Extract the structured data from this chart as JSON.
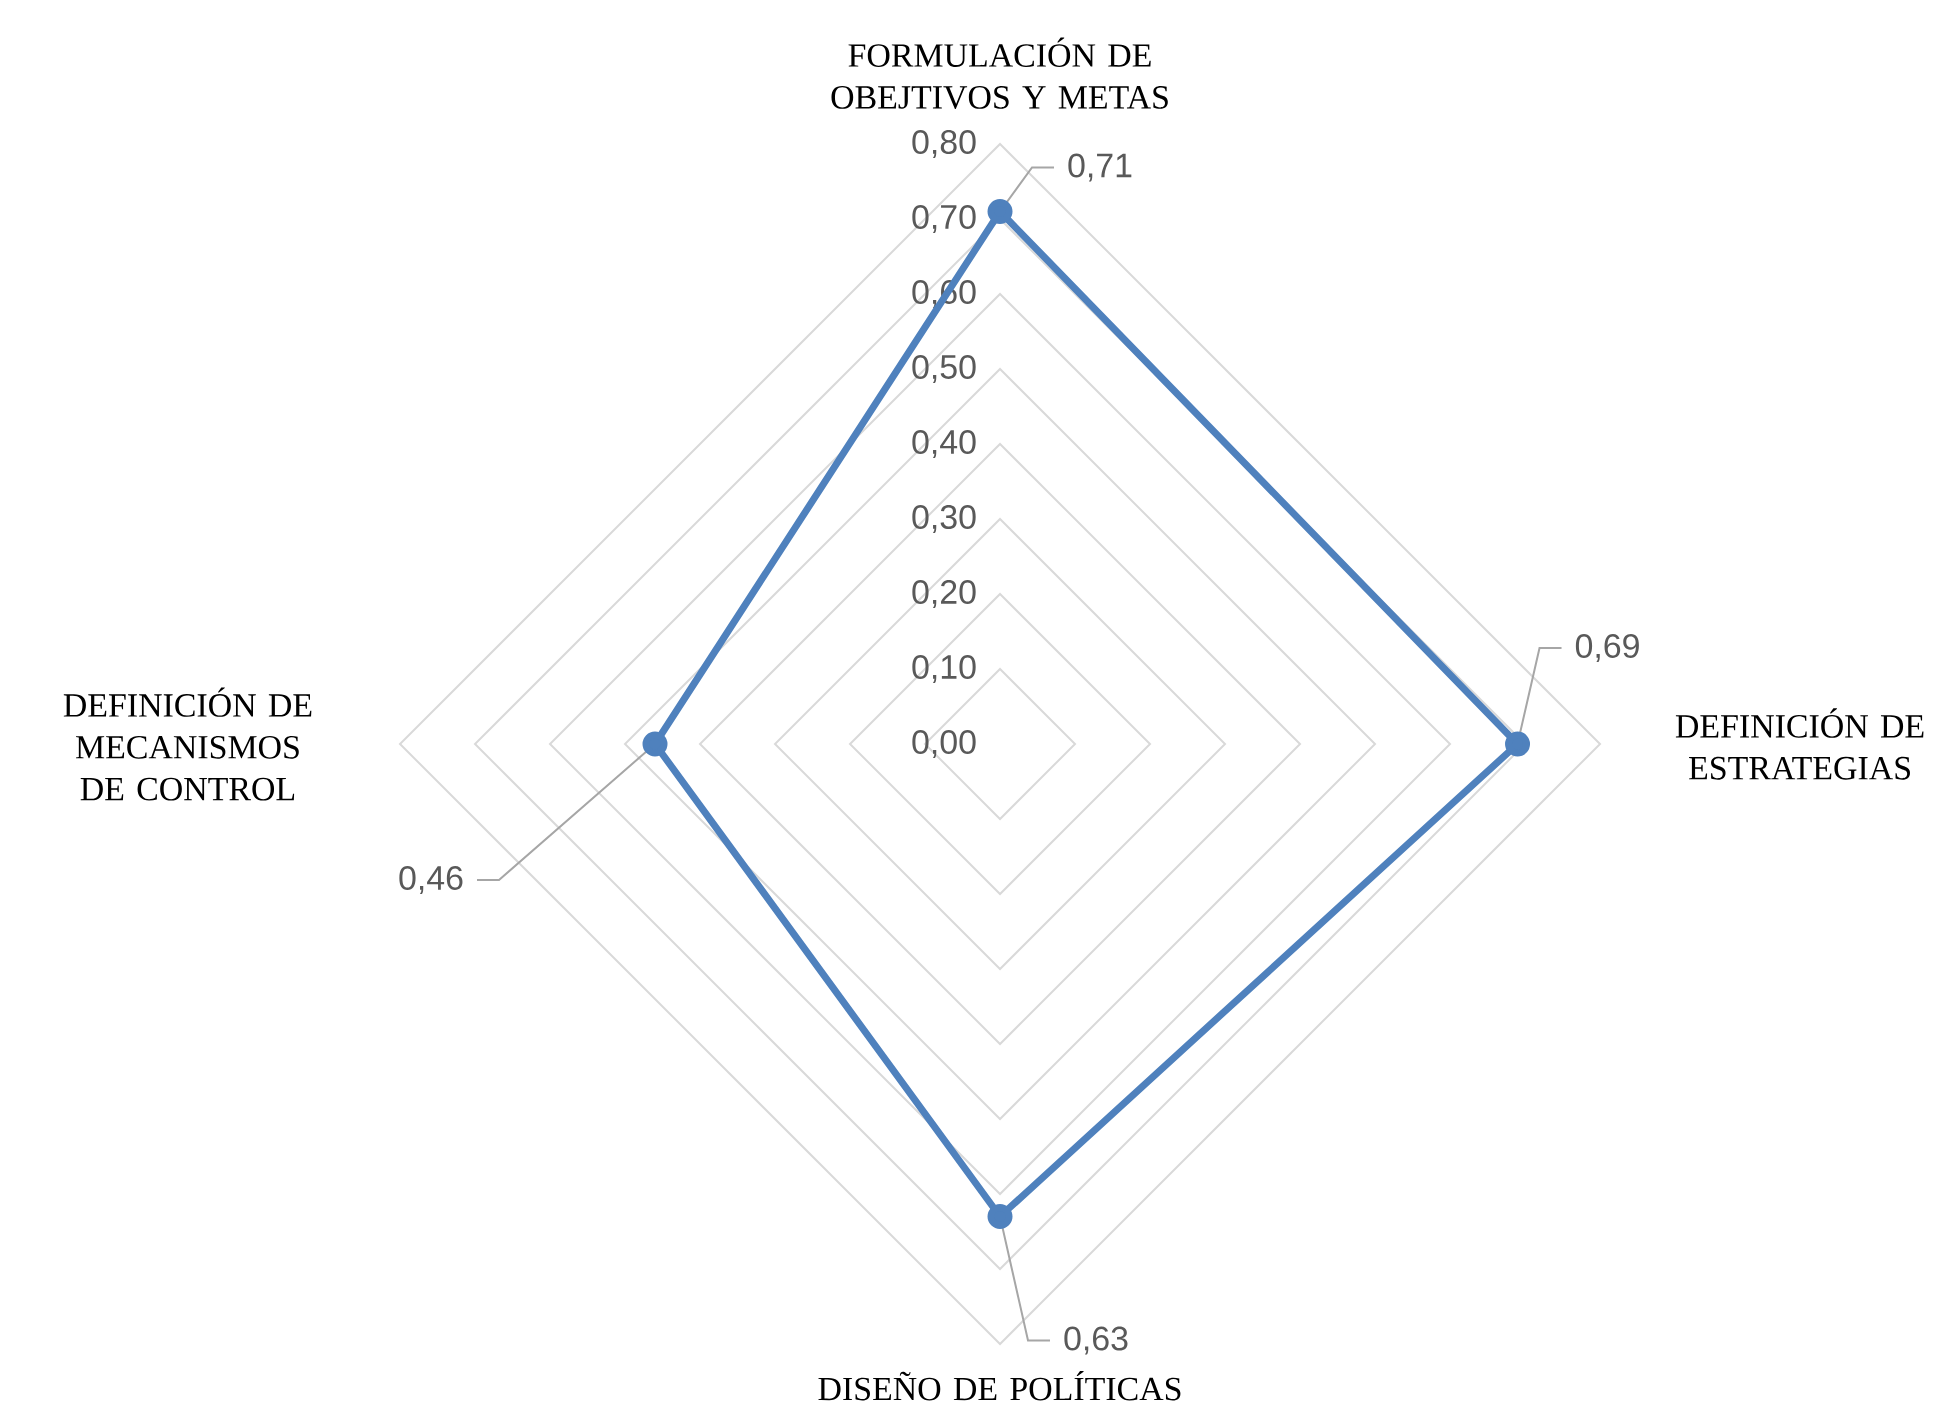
{
  "chart_data": {
    "type": "radar",
    "categories": [
      "FORMULACIÓN DE OBEJTIVOS Y METAS",
      "DEFINICIÓN DE ESTRATEGIAS",
      "DISEÑO DE POLÍTICAS",
      "DEFINICIÓN DE MECANISMOS DE CONTROL"
    ],
    "series": [
      {
        "color": "#4f81bd",
        "values": [
          0.71,
          0.69,
          0.63,
          0.46
        ],
        "value_labels": [
          "0,71",
          "0,69",
          "0,63",
          "0,46"
        ]
      }
    ],
    "ylim": [
      0,
      0.8
    ],
    "yticks": [
      {
        "value": 0,
        "label": "0,00"
      },
      {
        "value": 0.1,
        "label": "0,10"
      },
      {
        "value": 0.2,
        "label": "0,20"
      },
      {
        "value": 0.3,
        "label": "0,30"
      },
      {
        "value": 0.4,
        "label": "0,40"
      },
      {
        "value": 0.5,
        "label": "0,50"
      },
      {
        "value": 0.6,
        "label": "0,60"
      },
      {
        "value": 0.7,
        "label": "0,70"
      },
      {
        "value": 0.8,
        "label": "0,80"
      }
    ],
    "grid": true,
    "marker": "circle",
    "line_style": "solid"
  }
}
